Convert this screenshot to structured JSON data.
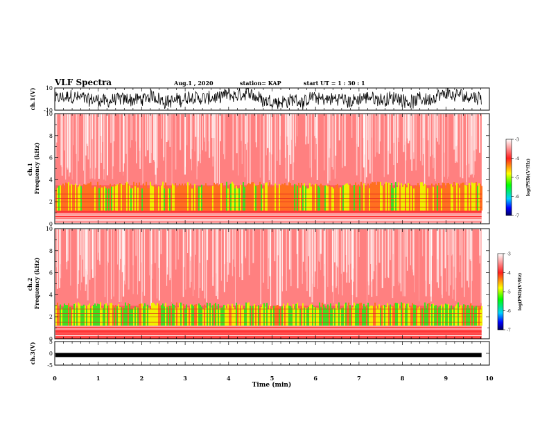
{
  "header": {
    "title": "VLF Spectra",
    "date": "Aug.1  , 2020",
    "station": "station= KAP",
    "start": "start  UT =   1 : 30 : 1"
  },
  "chart_data": [
    {
      "type": "line",
      "panel": "ch1-waveform",
      "ylabel": "ch.1(V)",
      "ylim": [
        -10,
        10
      ],
      "yticks": [
        "10",
        "-10"
      ],
      "xlim": [
        0,
        9.82
      ],
      "line_color": "#000000"
    },
    {
      "type": "heatmap",
      "panel": "ch1-spectrogram",
      "ylabel": "ch.1\nFrequency  (kHz)",
      "ylabel_lines": [
        "ch.1",
        "Frequency  (kHz)"
      ],
      "ylim": [
        0,
        10
      ],
      "yticks": [
        "0",
        "2",
        "4",
        "6",
        "8",
        "10"
      ],
      "xlim": [
        0,
        9.82
      ],
      "band_top_khz": 3.5,
      "colorbar": {
        "range": [
          -7,
          -3
        ],
        "ticks": [
          "-3",
          "-4",
          "-5",
          "-6",
          "-7"
        ],
        "label": "log(PSD)(V²/Hz)"
      }
    },
    {
      "type": "heatmap",
      "panel": "ch2-spectrogram",
      "ylabel": "ch.2\nFrequency  (kHz)",
      "ylabel_lines": [
        "ch.2",
        "Frequency  (kHz)"
      ],
      "ylim": [
        0,
        10
      ],
      "yticks": [
        "0",
        "2",
        "4",
        "6",
        "8",
        "10"
      ],
      "xlim": [
        0,
        9.82
      ],
      "band_top_khz": 3.0,
      "colorbar": {
        "range": [
          -7,
          -3
        ],
        "ticks": [
          "-3",
          "-4",
          "-5",
          "-6",
          "-7"
        ],
        "label": "log(PSD)(V²/Hz)"
      }
    },
    {
      "type": "line",
      "panel": "ch3-waveform",
      "ylabel": "ch.3(V)",
      "ylim": [
        -5,
        5
      ],
      "yticks": [
        "5",
        "0",
        "-5"
      ],
      "xlim": [
        0,
        9.82
      ],
      "level": -0.7,
      "line_color": "#000000"
    }
  ],
  "xaxis": {
    "label": "Time  (min)",
    "range": [
      0,
      10
    ],
    "ticks": [
      "0",
      "1",
      "2",
      "3",
      "4",
      "5",
      "6",
      "7",
      "8",
      "9",
      "10"
    ]
  }
}
